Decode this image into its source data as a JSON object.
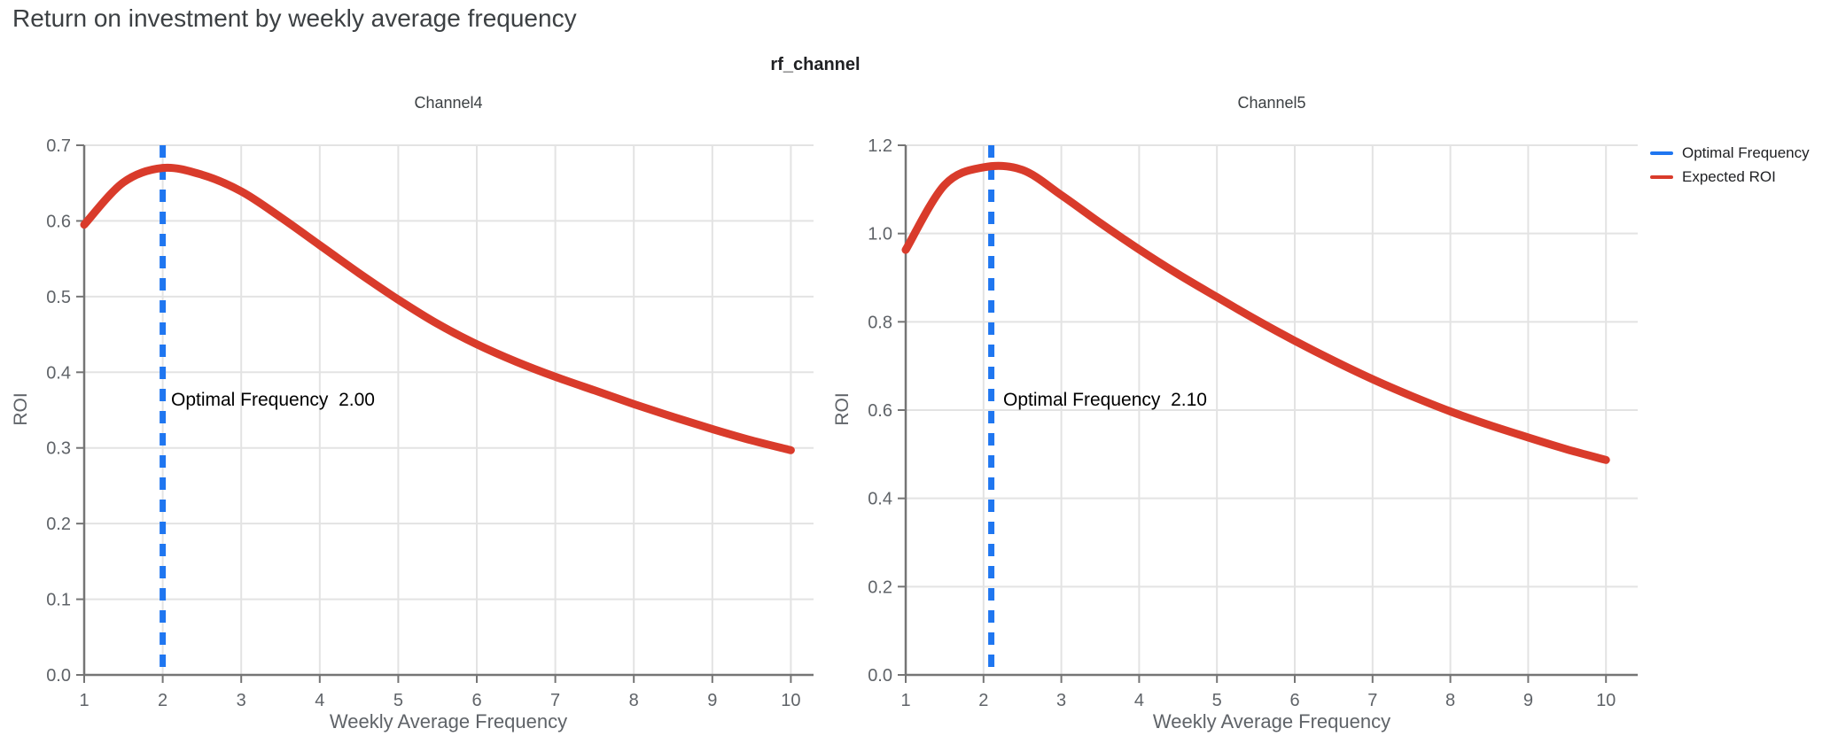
{
  "page_title": "Return on investment by weekly average frequency",
  "facet_title": "rf_channel",
  "legend": {
    "items": [
      {
        "label": "Optimal Frequency",
        "color": "#1f76f0"
      },
      {
        "label": "Expected ROI",
        "color": "#d93b2b"
      }
    ]
  },
  "colors": {
    "accent_blue": "#1f76f0",
    "accent_red": "#d93b2b",
    "title": "#3c4043",
    "axis": "#757575",
    "grid": "#e3e3e3",
    "tick_label": "#5f6368"
  },
  "chart_data": [
    {
      "type": "line",
      "title": "Channel4",
      "xlabel": "Weekly Average Frequency",
      "ylabel": "ROI",
      "xticks": [
        1,
        2,
        3,
        4,
        5,
        6,
        7,
        8,
        9,
        10
      ],
      "yticks": [
        "0.0",
        "0.1",
        "0.2",
        "0.3",
        "0.4",
        "0.5",
        "0.6",
        "0.7"
      ],
      "xlim": [
        1,
        10.3
      ],
      "ylim": [
        0,
        0.7
      ],
      "grid": true,
      "legend_position": "top-right-outside",
      "optimal_frequency": 2.0,
      "annotation": "Optimal Frequency  2.00",
      "vline": {
        "name": "Optimal Frequency",
        "x": 2.0
      },
      "series": [
        {
          "name": "Expected ROI",
          "x": [
            1,
            1.5,
            2,
            2.5,
            3,
            3.5,
            4,
            4.5,
            5,
            5.5,
            6,
            6.5,
            7,
            7.5,
            8,
            8.5,
            9,
            9.5,
            10
          ],
          "y": [
            0.595,
            0.651,
            0.67,
            0.661,
            0.639,
            0.605,
            0.568,
            0.531,
            0.496,
            0.464,
            0.437,
            0.414,
            0.394,
            0.376,
            0.358,
            0.341,
            0.325,
            0.31,
            0.297
          ]
        }
      ]
    },
    {
      "type": "line",
      "title": "Channel5",
      "xlabel": "Weekly Average Frequency",
      "ylabel": "ROI",
      "xticks": [
        1,
        2,
        3,
        4,
        5,
        6,
        7,
        8,
        9,
        10
      ],
      "yticks": [
        "0.0",
        "0.2",
        "0.4",
        "0.6",
        "0.8",
        "1.0",
        "1.2"
      ],
      "xlim": [
        1,
        10.4
      ],
      "ylim": [
        0,
        1.2
      ],
      "grid": true,
      "legend_position": "top-right-outside",
      "optimal_frequency": 2.1,
      "annotation": "Optimal Frequency  2.10",
      "vline": {
        "name": "Optimal Frequency",
        "x": 2.1
      },
      "series": [
        {
          "name": "Expected ROI",
          "x": [
            1,
            1.5,
            2,
            2.5,
            3,
            3.5,
            4,
            4.5,
            5,
            5.5,
            6,
            6.5,
            7,
            7.5,
            8,
            8.5,
            9,
            9.5,
            10
          ],
          "y": [
            0.963,
            1.11,
            1.15,
            1.144,
            1.087,
            1.024,
            0.964,
            0.908,
            0.856,
            0.805,
            0.757,
            0.712,
            0.67,
            0.632,
            0.597,
            0.566,
            0.538,
            0.511,
            0.487
          ]
        }
      ]
    }
  ]
}
